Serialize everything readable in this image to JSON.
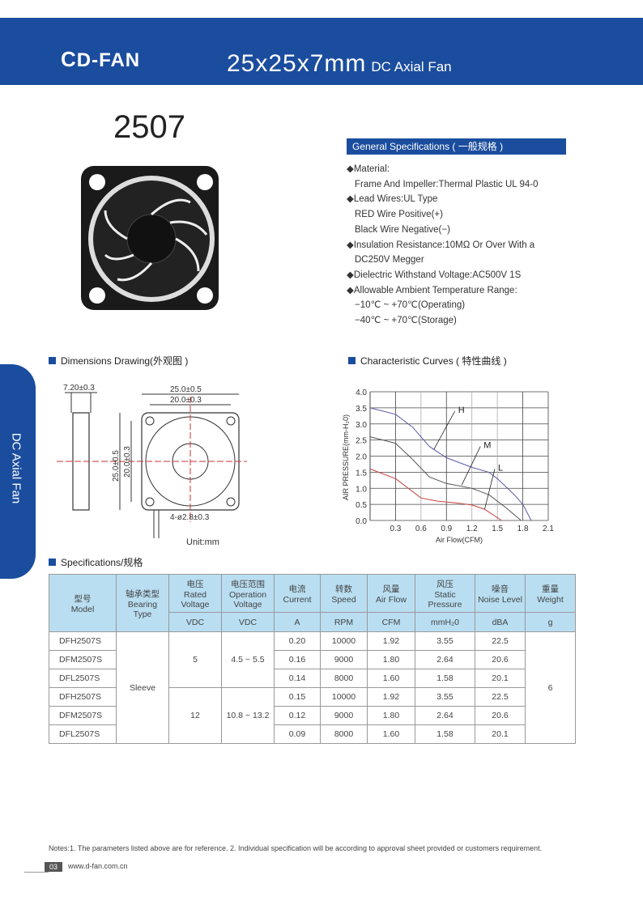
{
  "header": {
    "logo": "D-FAN",
    "title": "25x25x7mm",
    "subtitle": "DC Axial Fan",
    "brand_color": "#1b4d9e"
  },
  "model_number": "2507",
  "general_specs": {
    "title": "General Specifications ( 一般规格 )",
    "lines": [
      "◆Material:",
      "Frame And Impeller:Thermal Plastic UL 94-0",
      "◆Lead Wires:UL Type",
      "RED Wire Positive(+)",
      "Black Wire Negative(−)",
      "◆Insulation Resistance:10MΩ Or Over With a",
      "DC250V Megger",
      "◆Dielectric Withstand Voltage:AC500V 1S",
      "◆Allowable Ambient Temperature Range:",
      "−10℃ ~ +70℃(Operating)",
      "−40℃ ~ +70℃(Storage)"
    ]
  },
  "side_tab": "DC Axial Fan",
  "dimensions": {
    "title": "Dimensions Drawing(外观图 )",
    "labels": [
      "7.20±0.3",
      "25.0±0.5",
      "20.0±0.3",
      "25.0±0.5",
      "20.0±0.3",
      "4-ø2.8±0.3"
    ],
    "unit": "Unit:mm"
  },
  "curves_title": "Characteristic Curves ( 特性曲线 )",
  "chart_data": {
    "type": "line",
    "xlabel": "Air Flow(CFM)",
    "ylabel": "AIR PRESSURE(mm-H₂0)",
    "xlim": [
      0,
      2.1
    ],
    "ylim": [
      0,
      4.0
    ],
    "grid": true,
    "xticks": [
      "0.3",
      "0.6",
      "0.9",
      "1.2",
      "1.5",
      "1.8",
      "2.1"
    ],
    "yticks": [
      "0.0",
      "0.5",
      "1.0",
      "1.5",
      "2.0",
      "2.5",
      "3.0",
      "3.5",
      "4.0"
    ],
    "series": [
      {
        "name": "H",
        "color": "#5a5aa8",
        "x": [
          0,
          0.3,
          0.5,
          0.7,
          0.9,
          1.2,
          1.4,
          1.5,
          1.7,
          1.8,
          1.9
        ],
        "y": [
          3.5,
          3.3,
          2.9,
          2.3,
          1.95,
          1.65,
          1.5,
          1.3,
          0.8,
          0.5,
          0
        ]
      },
      {
        "name": "M",
        "color": "#555555",
        "x": [
          0,
          0.3,
          0.5,
          0.7,
          0.9,
          1.2,
          1.4,
          1.6,
          1.78
        ],
        "y": [
          2.6,
          2.4,
          1.9,
          1.35,
          1.15,
          1.0,
          0.8,
          0.4,
          0
        ]
      },
      {
        "name": "L",
        "color": "#c84040",
        "x": [
          0,
          0.3,
          0.6,
          0.8,
          1.0,
          1.2,
          1.35,
          1.55
        ],
        "y": [
          1.6,
          1.3,
          0.7,
          0.6,
          0.55,
          0.48,
          0.35,
          0
        ]
      }
    ]
  },
  "spec_table": {
    "title": "Specifications/规格",
    "headers": [
      [
        "型号",
        "Model"
      ],
      [
        "轴承类型",
        "Bearing",
        "Type"
      ],
      [
        "电压",
        "Rated",
        "Voltage"
      ],
      [
        "电压范围",
        "Operation",
        "Voltage"
      ],
      [
        "电流",
        "Current"
      ],
      [
        "转数",
        "Speed"
      ],
      [
        "风量",
        "Air Flow"
      ],
      [
        "风压",
        "Static",
        "Pressure"
      ],
      [
        "噪音",
        "Noise Level"
      ],
      [
        "重量",
        "Weight"
      ]
    ],
    "units": [
      "VDC",
      "VDC",
      "A",
      "RPM",
      "CFM",
      "mmH₂0",
      "dBA",
      "g"
    ],
    "bearing": "Sleeve",
    "weight": "6",
    "groups": [
      {
        "voltage": "5",
        "range": "4.5 ~ 5.5"
      },
      {
        "voltage": "12",
        "range": "10.8 ~ 13.2"
      }
    ],
    "rows": [
      [
        "DFH2507S",
        "0.20",
        "10000",
        "1.92",
        "3.55",
        "22.5"
      ],
      [
        "DFM2507S",
        "0.16",
        "9000",
        "1.80",
        "2.64",
        "20.6"
      ],
      [
        "DFL2507S",
        "0.14",
        "8000",
        "1.60",
        "1.58",
        "20.1"
      ],
      [
        "DFH2507S",
        "0.15",
        "10000",
        "1.92",
        "3.55",
        "22.5"
      ],
      [
        "DFM2507S",
        "0.12",
        "9000",
        "1.80",
        "2.64",
        "20.6"
      ],
      [
        "DFL2507S",
        "0.09",
        "8000",
        "1.60",
        "1.58",
        "20.1"
      ]
    ]
  },
  "notes": "Notes:1. The parameters listed above are for reference.   2. Individual specification will be according to approval sheet provided or customers requirement.",
  "footer": {
    "page": "03",
    "url": "www.d-fan.com.cn"
  }
}
